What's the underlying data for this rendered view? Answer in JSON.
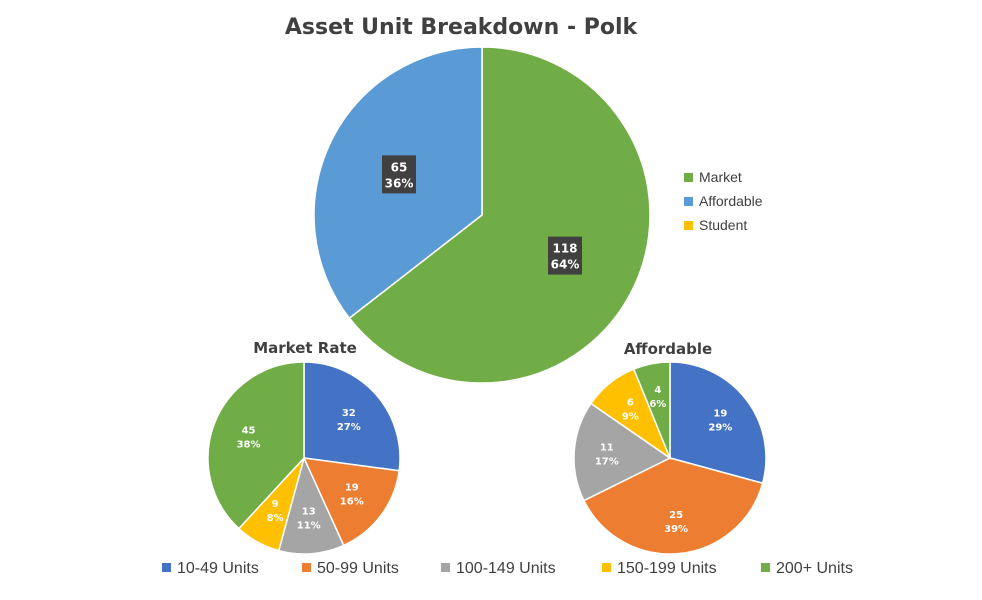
{
  "chart_data": [
    {
      "type": "pie",
      "title": "Asset Unit Breakdown - Polk",
      "categories": [
        "Market",
        "Affordable",
        "Student"
      ],
      "values": [
        118,
        65,
        0
      ],
      "percent_labels": [
        "64%",
        "36%",
        "0%"
      ],
      "colors": [
        "#70AD47",
        "#5B9BD5",
        "#FFC000"
      ],
      "legend_position": "right",
      "label_style": "dark-box"
    },
    {
      "type": "pie",
      "title": "Market Rate",
      "categories": [
        "10-49 Units",
        "50-99 Units",
        "100-149 Units",
        "150-199 Units",
        "200+ Units"
      ],
      "values": [
        32,
        19,
        13,
        9,
        45
      ],
      "percent_labels": [
        "27%",
        "16%",
        "11%",
        "8%",
        "38%"
      ],
      "colors": [
        "#4472C4",
        "#ED7D31",
        "#A5A5A5",
        "#FFC000",
        "#70AD47"
      ]
    },
    {
      "type": "pie",
      "title": "Affordable",
      "categories": [
        "10-49 Units",
        "50-99 Units",
        "100-149 Units",
        "150-199 Units",
        "200+ Units"
      ],
      "values": [
        19,
        25,
        11,
        6,
        4
      ],
      "percent_labels": [
        "29%",
        "39%",
        "17%",
        "9%",
        "6%"
      ],
      "colors": [
        "#4472C4",
        "#ED7D31",
        "#A5A5A5",
        "#FFC000",
        "#70AD47"
      ]
    }
  ],
  "bottom_legend": {
    "position": "bottom",
    "items": [
      {
        "label": "10-49 Units",
        "color": "#4472C4"
      },
      {
        "label": "50-99 Units",
        "color": "#ED7D31"
      },
      {
        "label": "100-149 Units",
        "color": "#A5A5A5"
      },
      {
        "label": "150-199 Units",
        "color": "#FFC000"
      },
      {
        "label": "200+ Units",
        "color": "#70AD47"
      }
    ]
  }
}
